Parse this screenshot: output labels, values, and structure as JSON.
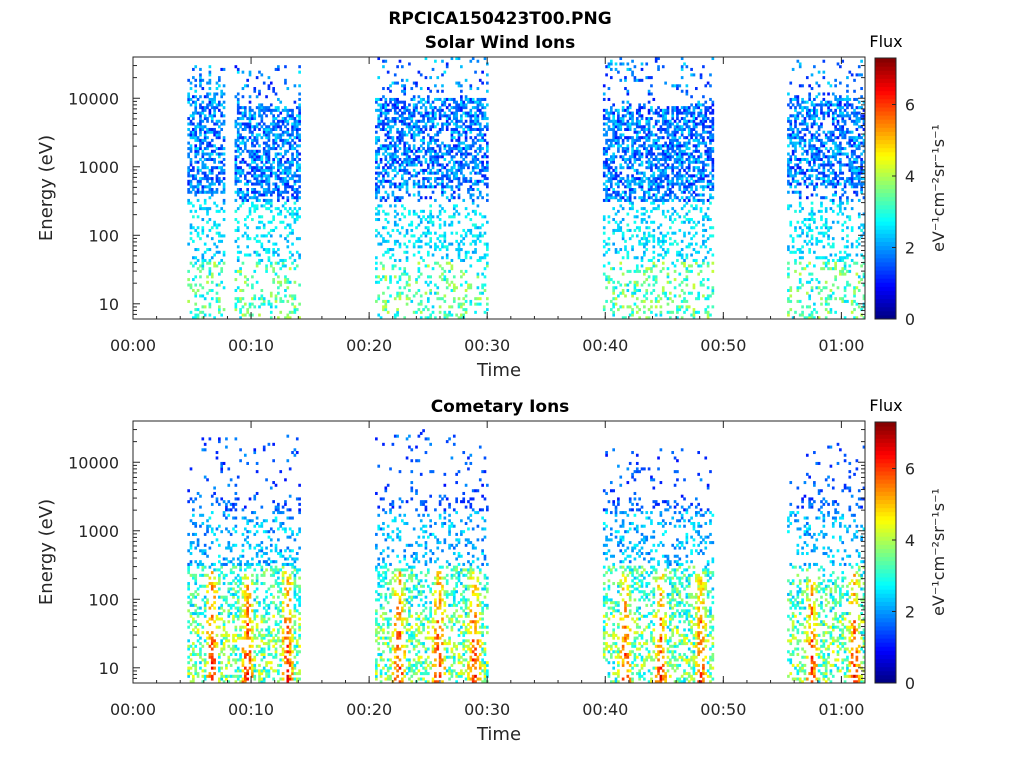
{
  "page": {
    "title": "RPCICA150423T00.PNG"
  },
  "chart_data": [
    {
      "type": "heatmap",
      "title": "Solar Wind Ions",
      "xlabel": "Time",
      "ylabel": "Energy (eV)",
      "x_unit": "minutes since 00:00",
      "xlim": [
        0,
        62
      ],
      "ylim": [
        6,
        40000
      ],
      "yscale": "log",
      "x_ticks": [
        0,
        10,
        20,
        30,
        40,
        50,
        60
      ],
      "x_tick_labels": [
        "00:00",
        "00:10",
        "00:20",
        "00:30",
        "00:40",
        "00:50",
        "01:00"
      ],
      "y_ticks": [
        10,
        100,
        1000,
        10000
      ],
      "y_tick_labels": [
        "10",
        "100",
        "1000",
        "10000"
      ],
      "colorbar": {
        "title": "Flux",
        "label": "eV⁻¹cm⁻²sr⁻¹s⁻¹",
        "range": [
          0,
          7.3
        ],
        "ticks": [
          0,
          2,
          4,
          6
        ],
        "tick_labels": [
          "0",
          "2",
          "4",
          "6"
        ]
      },
      "bursts": [
        {
          "t_start": 4.6,
          "t_end": 7.7,
          "e_min": 6,
          "e_max": 30000,
          "core_e_min": 400,
          "core_e_max": 12000,
          "peak_flux": 4.2
        },
        {
          "t_start": 8.6,
          "t_end": 14.0,
          "e_min": 6,
          "e_max": 30000,
          "core_e_min": 300,
          "core_e_max": 8000,
          "peak_flux": 4.2
        },
        {
          "t_start": 20.5,
          "t_end": 30.0,
          "e_min": 6,
          "e_max": 40000,
          "core_e_min": 500,
          "core_e_max": 10000,
          "peak_flux": 4.0
        },
        {
          "t_start": 39.8,
          "t_end": 49.1,
          "e_min": 6,
          "e_max": 40000,
          "core_e_min": 300,
          "core_e_max": 8000,
          "peak_flux": 4.0
        },
        {
          "t_start": 55.4,
          "t_end": 62.0,
          "e_min": 6,
          "e_max": 35000,
          "core_e_min": 500,
          "core_e_max": 10000,
          "peak_flux": 4.0
        }
      ]
    },
    {
      "type": "heatmap",
      "title": "Cometary Ions",
      "xlabel": "Time",
      "ylabel": "Energy (eV)",
      "x_unit": "minutes since 00:00",
      "xlim": [
        0,
        62
      ],
      "ylim": [
        6,
        40000
      ],
      "yscale": "log",
      "x_ticks": [
        0,
        10,
        20,
        30,
        40,
        50,
        60
      ],
      "x_tick_labels": [
        "00:00",
        "00:10",
        "00:20",
        "00:30",
        "00:40",
        "00:50",
        "01:00"
      ],
      "y_ticks": [
        10,
        100,
        1000,
        10000
      ],
      "y_tick_labels": [
        "10",
        "100",
        "1000",
        "10000"
      ],
      "colorbar": {
        "title": "Flux",
        "label": "eV⁻¹cm⁻²sr⁻¹s⁻¹",
        "range": [
          0,
          7.3
        ],
        "ticks": [
          0,
          2,
          4,
          6
        ],
        "tick_labels": [
          "0",
          "2",
          "4",
          "6"
        ]
      },
      "bursts": [
        {
          "t_start": 4.6,
          "t_end": 14.0,
          "e_min": 6,
          "e_max": 25000,
          "core_e_min": 6,
          "core_e_max": 400,
          "peak_flux": 7.0,
          "hot_times": [
            6.6,
            9.6,
            13.0
          ]
        },
        {
          "t_start": 20.5,
          "t_end": 30.0,
          "e_min": 6,
          "e_max": 30000,
          "core_e_min": 6,
          "core_e_max": 300,
          "peak_flux": 7.0,
          "hot_times": [
            22.4,
            25.8,
            28.8
          ]
        },
        {
          "t_start": 39.8,
          "t_end": 49.1,
          "e_min": 6,
          "e_max": 17000,
          "core_e_min": 6,
          "core_e_max": 300,
          "peak_flux": 6.8,
          "hot_times": [
            41.6,
            44.6,
            48.0
          ]
        },
        {
          "t_start": 55.4,
          "t_end": 62.0,
          "e_min": 6,
          "e_max": 20000,
          "core_e_min": 6,
          "core_e_max": 200,
          "peak_flux": 6.8,
          "hot_times": [
            57.4,
            61.0
          ]
        }
      ]
    }
  ]
}
